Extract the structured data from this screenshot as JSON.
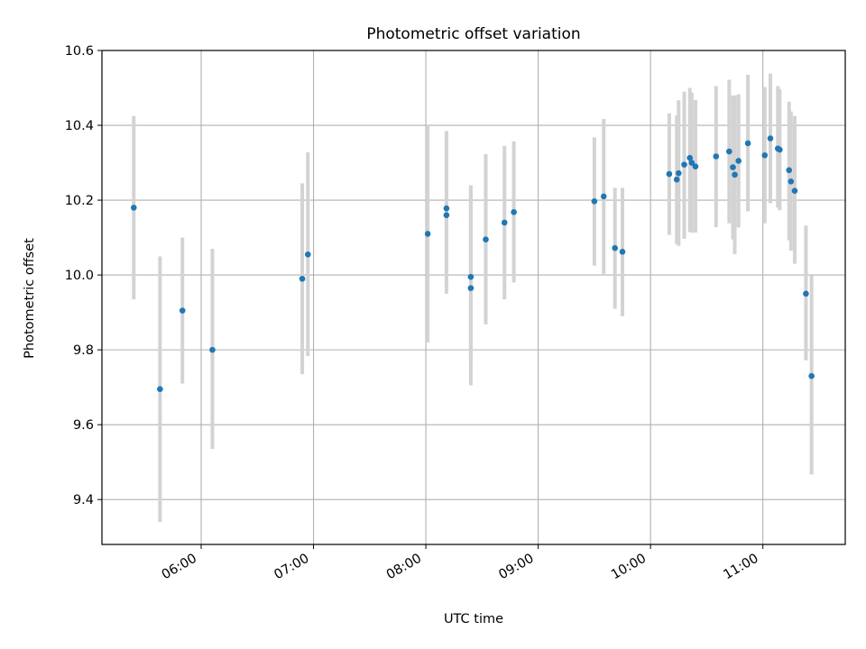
{
  "chart_data": {
    "type": "scatter",
    "title": "Photometric offset variation",
    "xlabel": "UTC time",
    "ylabel": "Photometric offset",
    "x_ticks": [
      "06:00",
      "07:00",
      "08:00",
      "09:00",
      "10:00",
      "11:00"
    ],
    "y_ticks": [
      "9.4",
      "9.6",
      "9.8",
      "10.0",
      "10.2",
      "10.4",
      "10.6"
    ],
    "xlim": [
      "05:07",
      "11:44"
    ],
    "ylim": [
      9.28,
      10.6
    ],
    "grid": true,
    "colors": {
      "point": "#1f77b4",
      "errorbar": "#d3d3d3",
      "grid": "#b0b0b0"
    },
    "points": [
      {
        "t": "05:24",
        "y": 10.18,
        "lo": 9.935,
        "hi": 10.425
      },
      {
        "t": "05:38",
        "y": 9.695,
        "lo": 9.34,
        "hi": 10.05
      },
      {
        "t": "05:50",
        "y": 9.905,
        "lo": 9.71,
        "hi": 10.1
      },
      {
        "t": "06:06",
        "y": 9.8,
        "lo": 9.535,
        "hi": 10.07
      },
      {
        "t": "06:54",
        "y": 9.99,
        "lo": 9.735,
        "hi": 10.245
      },
      {
        "t": "06:57",
        "y": 10.055,
        "lo": 9.783,
        "hi": 10.328
      },
      {
        "t": "08:01",
        "y": 10.11,
        "lo": 9.82,
        "hi": 10.4
      },
      {
        "t": "08:11",
        "y": 10.178,
        "lo": 9.97,
        "hi": 10.385
      },
      {
        "t": "08:11",
        "y": 10.16,
        "lo": 9.95,
        "hi": 10.37
      },
      {
        "t": "08:24",
        "y": 9.995,
        "lo": 9.765,
        "hi": 10.225
      },
      {
        "t": "08:24",
        "y": 9.965,
        "lo": 9.705,
        "hi": 10.24
      },
      {
        "t": "08:32",
        "y": 10.095,
        "lo": 9.868,
        "hi": 10.323
      },
      {
        "t": "08:42",
        "y": 10.14,
        "lo": 9.935,
        "hi": 10.345
      },
      {
        "t": "08:47",
        "y": 10.168,
        "lo": 9.98,
        "hi": 10.357
      },
      {
        "t": "09:30",
        "y": 10.197,
        "lo": 10.025,
        "hi": 10.368
      },
      {
        "t": "09:35",
        "y": 10.21,
        "lo": 10.003,
        "hi": 10.417
      },
      {
        "t": "09:41",
        "y": 10.072,
        "lo": 9.91,
        "hi": 10.233
      },
      {
        "t": "09:45",
        "y": 10.062,
        "lo": 9.89,
        "hi": 10.233
      },
      {
        "t": "10:10",
        "y": 10.27,
        "lo": 10.107,
        "hi": 10.432
      },
      {
        "t": "10:14",
        "y": 10.255,
        "lo": 10.083,
        "hi": 10.427
      },
      {
        "t": "10:15",
        "y": 10.272,
        "lo": 10.078,
        "hi": 10.467
      },
      {
        "t": "10:18",
        "y": 10.295,
        "lo": 10.097,
        "hi": 10.49
      },
      {
        "t": "10:21",
        "y": 10.313,
        "lo": 10.115,
        "hi": 10.5
      },
      {
        "t": "10:22",
        "y": 10.3,
        "lo": 10.113,
        "hi": 10.487
      },
      {
        "t": "10:24",
        "y": 10.29,
        "lo": 10.113,
        "hi": 10.468
      },
      {
        "t": "10:35",
        "y": 10.317,
        "lo": 10.128,
        "hi": 10.505
      },
      {
        "t": "10:42",
        "y": 10.33,
        "lo": 10.138,
        "hi": 10.522
      },
      {
        "t": "10:44",
        "y": 10.288,
        "lo": 10.095,
        "hi": 10.48
      },
      {
        "t": "10:45",
        "y": 10.268,
        "lo": 10.056,
        "hi": 10.48
      },
      {
        "t": "10:47",
        "y": 10.305,
        "lo": 10.127,
        "hi": 10.483
      },
      {
        "t": "10:52",
        "y": 10.352,
        "lo": 10.17,
        "hi": 10.535
      },
      {
        "t": "11:01",
        "y": 10.32,
        "lo": 10.138,
        "hi": 10.502
      },
      {
        "t": "11:04",
        "y": 10.365,
        "lo": 10.192,
        "hi": 10.538
      },
      {
        "t": "11:08",
        "y": 10.338,
        "lo": 10.18,
        "hi": 10.505
      },
      {
        "t": "11:09",
        "y": 10.335,
        "lo": 10.173,
        "hi": 10.497
      },
      {
        "t": "11:14",
        "y": 10.28,
        "lo": 10.093,
        "hi": 10.463
      },
      {
        "t": "11:15",
        "y": 10.25,
        "lo": 10.065,
        "hi": 10.437
      },
      {
        "t": "11:17",
        "y": 10.225,
        "lo": 10.03,
        "hi": 10.425
      },
      {
        "t": "11:23",
        "y": 9.95,
        "lo": 9.772,
        "hi": 10.132
      },
      {
        "t": "11:26",
        "y": 9.73,
        "lo": 9.467,
        "hi": 9.998
      }
    ]
  }
}
